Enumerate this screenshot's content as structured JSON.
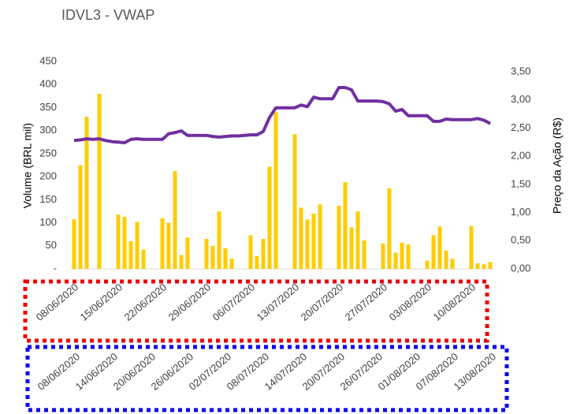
{
  "chart_data": {
    "type": "bar",
    "title": "IDVL3 - VWAP",
    "y_label": "Volume (BRL mil)",
    "y2_label": "Preço da Ação (R$)",
    "categories": [
      "08/06/2020",
      null,
      null,
      null,
      null,
      null,
      null,
      "15/06/2020",
      null,
      null,
      null,
      null,
      null,
      null,
      "22/06/2020",
      null,
      null,
      null,
      null,
      null,
      null,
      "29/06/2020",
      null,
      null,
      null,
      null,
      null,
      null,
      "06/07/2020",
      null,
      null,
      null,
      null,
      null,
      null,
      "13/07/2020",
      null,
      null,
      null,
      null,
      null,
      null,
      "20/07/2020",
      null,
      null,
      null,
      null,
      null,
      null,
      "27/07/2020",
      null,
      null,
      null,
      null,
      null,
      null,
      "03/08/2020",
      null,
      null,
      null,
      null,
      null,
      null,
      "10/08/2020",
      null,
      null,
      null
    ],
    "categories2": [
      "08/06/2020",
      null,
      null,
      null,
      null,
      null,
      "14/06/2020",
      null,
      null,
      null,
      null,
      null,
      "20/06/2020",
      null,
      null,
      null,
      null,
      null,
      "26/06/2020",
      null,
      null,
      null,
      null,
      null,
      "02/07/2020",
      null,
      null,
      null,
      null,
      null,
      "08/07/2020",
      null,
      null,
      null,
      null,
      null,
      "14/07/2020",
      null,
      null,
      null,
      null,
      null,
      "20/07/2020",
      null,
      null,
      null,
      null,
      null,
      "26/07/2020",
      null,
      null,
      null,
      null,
      null,
      "01/08/2020",
      null,
      null,
      null,
      null,
      null,
      "07/08/2020",
      null,
      null,
      null,
      null,
      null,
      "13/08/2020"
    ],
    "series": [
      {
        "type": "bar",
        "color": "#ffcc00",
        "values": [
          108,
          225,
          330,
          null,
          380,
          null,
          null,
          118,
          113,
          60,
          102,
          42,
          null,
          null,
          110,
          100,
          212,
          30,
          68,
          null,
          null,
          65,
          50,
          125,
          45,
          22,
          null,
          null,
          73,
          28,
          65,
          222,
          340,
          null,
          null,
          292,
          133,
          107,
          120,
          140,
          null,
          null,
          137,
          188,
          90,
          125,
          62,
          null,
          null,
          55,
          175,
          35,
          57,
          53,
          null,
          null,
          18,
          73,
          92,
          40,
          22,
          null,
          null,
          93,
          12,
          10,
          15
        ]
      },
      {
        "type": "line",
        "color": "#7030a0",
        "axis": "y2",
        "values": [
          2.28,
          2.29,
          2.31,
          2.3,
          2.31,
          2.28,
          2.26,
          2.25,
          2.24,
          2.3,
          2.31,
          2.3,
          2.3,
          2.3,
          2.3,
          2.4,
          2.42,
          2.45,
          2.37,
          2.37,
          2.37,
          2.37,
          2.35,
          2.34,
          2.35,
          2.36,
          2.36,
          2.37,
          2.38,
          2.38,
          2.44,
          2.69,
          2.86,
          2.86,
          2.86,
          2.86,
          2.91,
          2.88,
          3.05,
          3.02,
          3.02,
          3.02,
          3.22,
          3.22,
          3.18,
          2.98,
          2.98,
          2.98,
          2.98,
          2.97,
          2.93,
          2.8,
          2.83,
          2.72,
          2.72,
          2.72,
          2.72,
          2.62,
          2.62,
          2.66,
          2.65,
          2.65,
          2.65,
          2.65,
          2.67,
          2.64,
          2.58
        ]
      }
    ],
    "ylim": [
      0,
      450
    ],
    "yticks": [
      {
        "value": 0,
        "label": "-"
      },
      50,
      100,
      150,
      200,
      250,
      300,
      350,
      400,
      450
    ],
    "y2lim": [
      0,
      3.5
    ],
    "y2ticks": [
      {
        "value": 0,
        "label": "0,00"
      },
      {
        "value": 0.5,
        "label": "0,50"
      },
      {
        "value": 1,
        "label": "1,00"
      },
      {
        "value": 1.5,
        "label": "1,50"
      },
      {
        "value": 2,
        "label": "2,00"
      },
      {
        "value": 2.5,
        "label": "2,50"
      },
      {
        "value": 3,
        "label": "3,00"
      },
      {
        "value": 3.5,
        "label": "3,50"
      }
    ]
  }
}
